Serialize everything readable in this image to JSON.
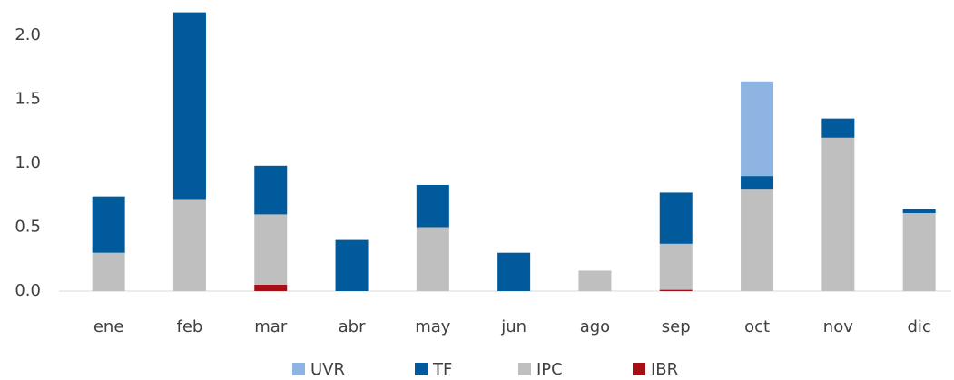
{
  "chart_data": {
    "type": "stacked-bar",
    "categories": [
      "ene",
      "feb",
      "mar",
      "abr",
      "may",
      "jun",
      "ago",
      "sep",
      "oct",
      "nov",
      "dic"
    ],
    "series": [
      {
        "name": "IBR",
        "color": "#a50f15",
        "values": [
          0,
          0,
          0.05,
          0,
          0,
          0,
          0,
          0.01,
          0,
          0,
          0
        ]
      },
      {
        "name": "IPC",
        "color": "#bfbfbf",
        "values": [
          0.3,
          0.72,
          0.55,
          0,
          0.5,
          0,
          0.16,
          0.36,
          0.8,
          1.2,
          0.61
        ]
      },
      {
        "name": "TF",
        "color": "#005a9c",
        "values": [
          0.44,
          1.46,
          0.38,
          0.4,
          0.33,
          0.3,
          0,
          0.4,
          0.1,
          0.15,
          0.03
        ]
      },
      {
        "name": "UVR",
        "color": "#8db4e2",
        "values": [
          0,
          0,
          0,
          0,
          0,
          0,
          0,
          0,
          0.74,
          0,
          0
        ]
      }
    ],
    "ylim": [
      0,
      2.2
    ],
    "yticks": [
      {
        "value": 0,
        "label": "0.0"
      },
      {
        "value": 0.5,
        "label": "0.5"
      },
      {
        "value": 1,
        "label": "1.0"
      },
      {
        "value": 1.5,
        "label": "1.5"
      },
      {
        "value": 2,
        "label": "2.0"
      }
    ],
    "legend": "bottom"
  }
}
